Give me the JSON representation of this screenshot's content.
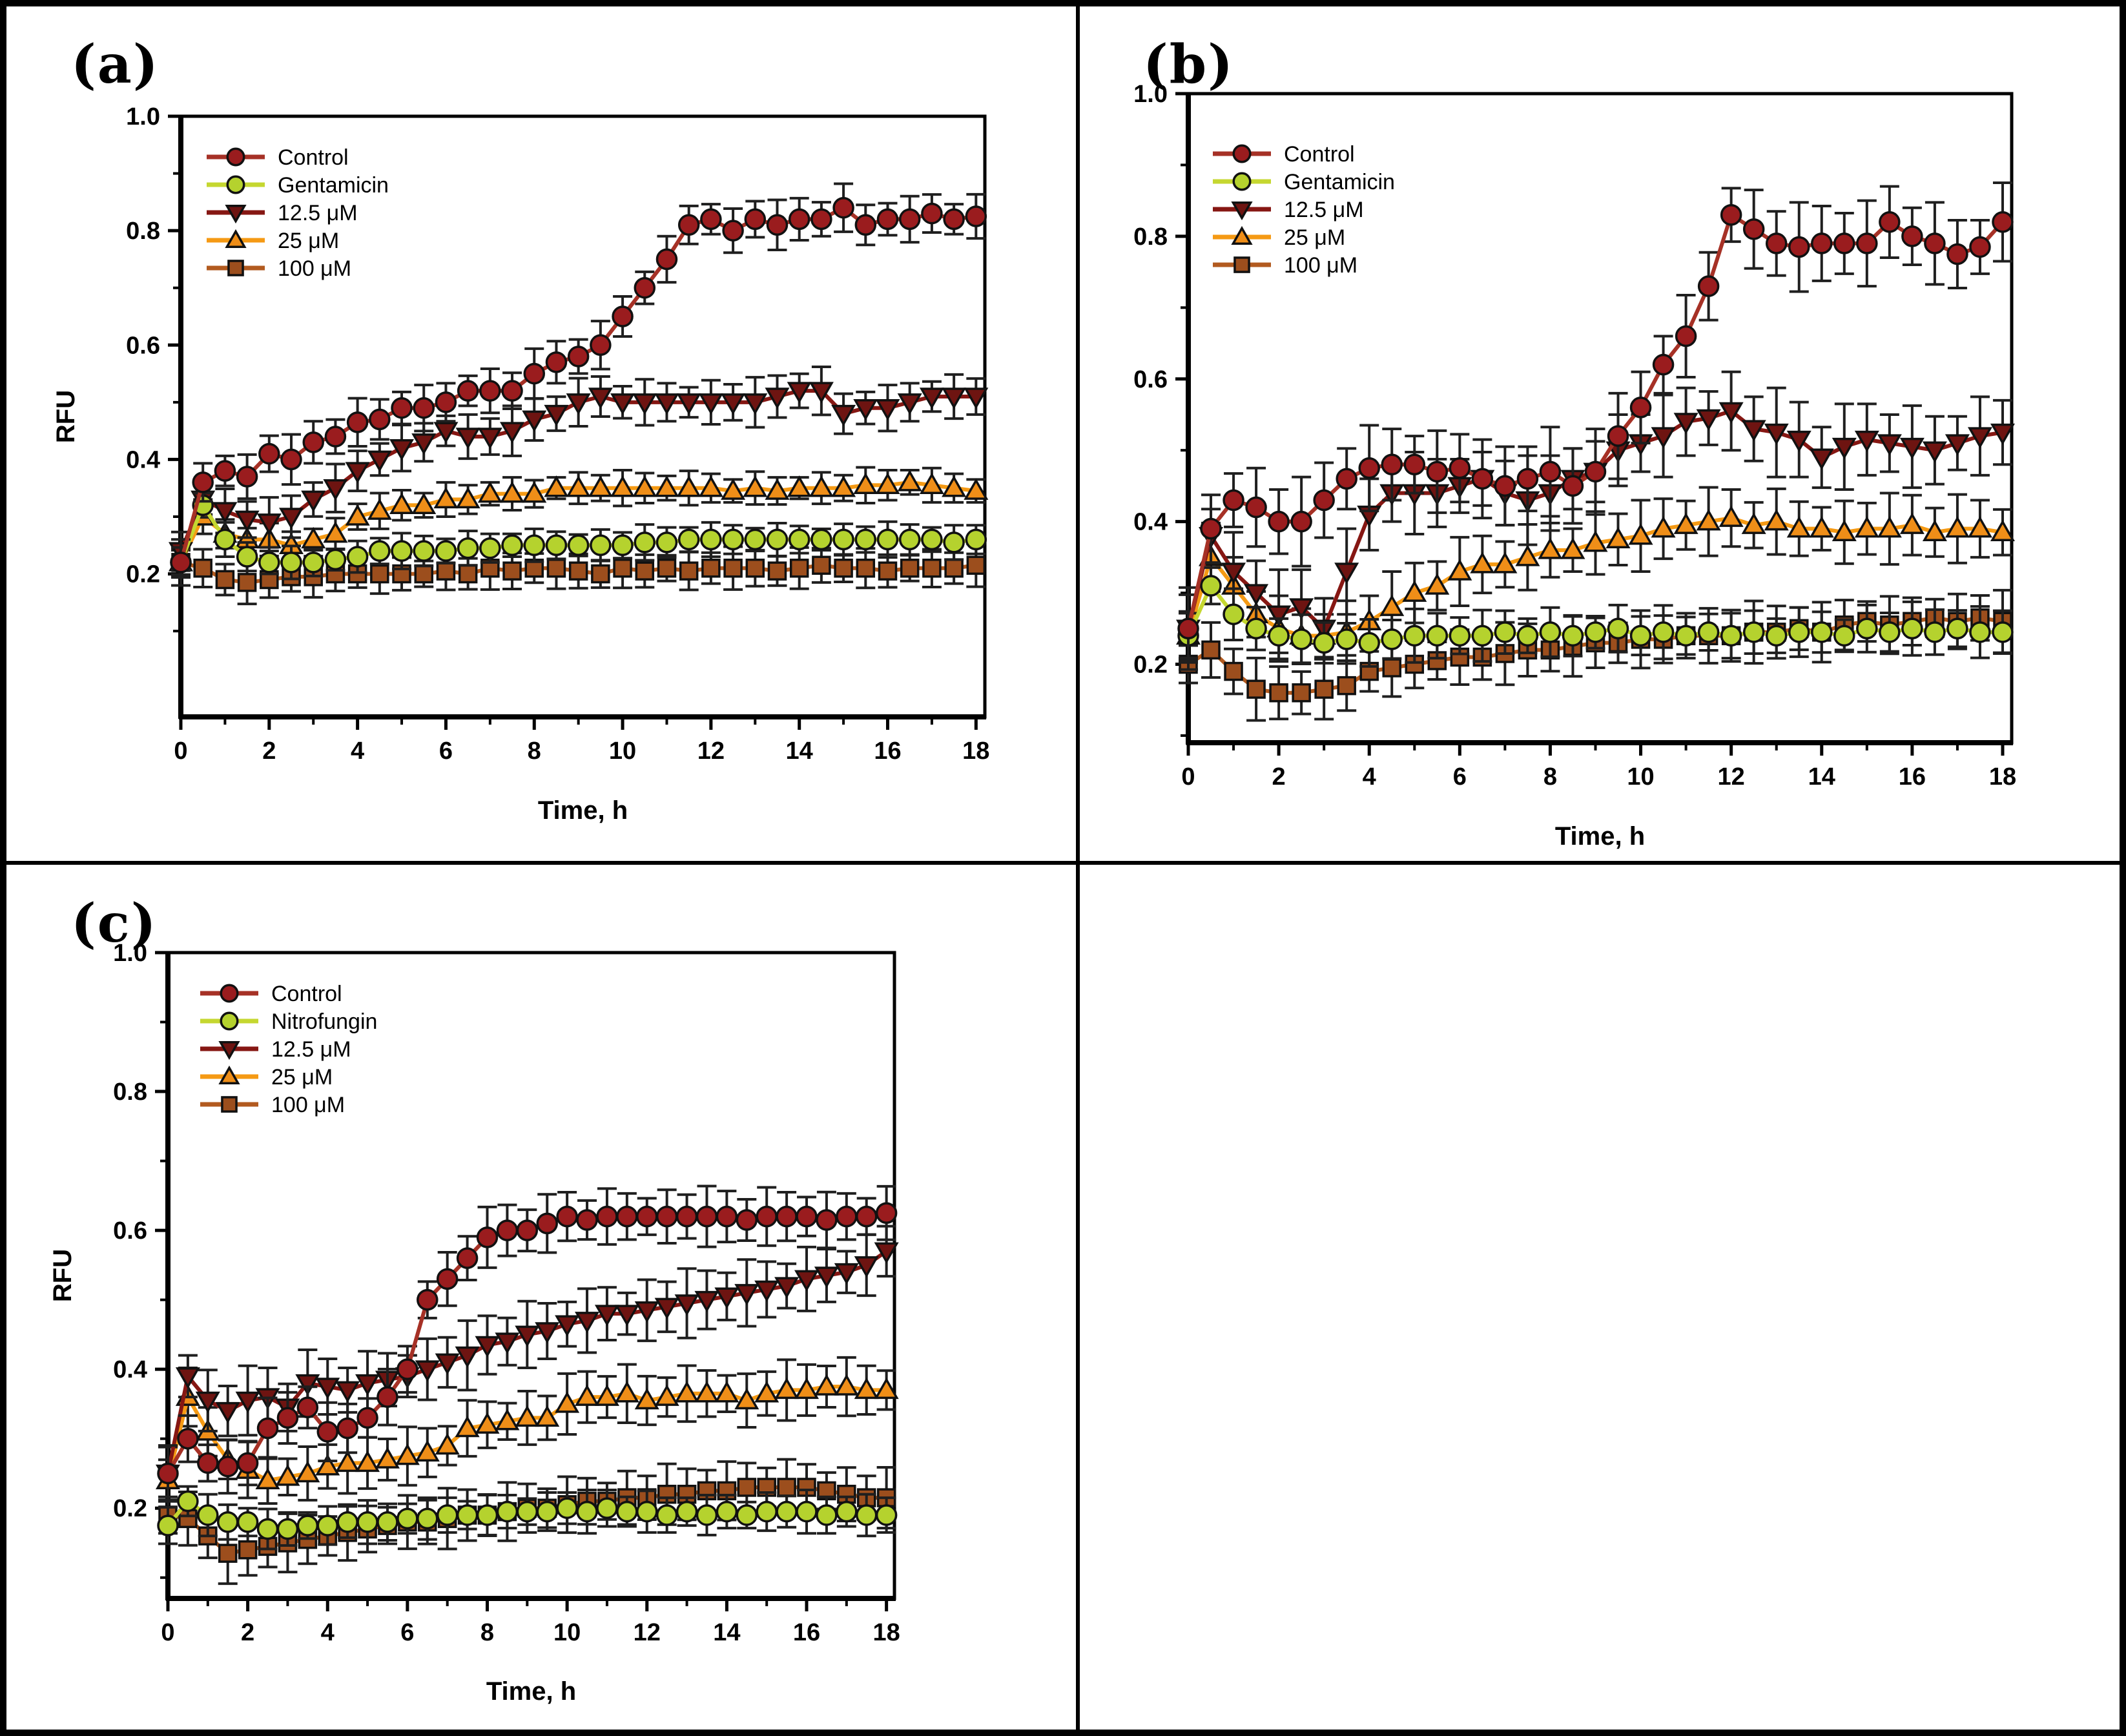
{
  "figure": {
    "background_color": "#ffffff",
    "border_color": "#000000",
    "error_bar_color": "#1f1f1f",
    "empty_cell": "bottom-right"
  },
  "chart_data": [
    {
      "type": "line",
      "id": "a",
      "title": "(a)",
      "xlabel": "Time, h",
      "ylabel": "RFU",
      "x_tick_labels": [
        "0",
        "2",
        "4",
        "6",
        "8",
        "10",
        "12",
        "14",
        "16",
        "18"
      ],
      "y_tick_labels": [
        "0.2",
        "0.4",
        "0.6",
        "0.8",
        "1.0"
      ],
      "xlim": [
        0,
        18.2
      ],
      "ylim": [
        -0.05,
        1.0
      ],
      "grid": false,
      "legend_position": "upper left",
      "x_hours": [
        0,
        0.5,
        1,
        1.5,
        2,
        2.5,
        3,
        3.5,
        4,
        4.5,
        5,
        5.5,
        6,
        6.5,
        7,
        7.5,
        8,
        8.5,
        9,
        9.5,
        10,
        10.5,
        11,
        11.5,
        12,
        12.5,
        13,
        13.5,
        14,
        14.5,
        15,
        15.5,
        16,
        16.5,
        17,
        17.5,
        18
      ],
      "series": [
        {
          "name": "Control",
          "marker": "circle",
          "line_color": "#a63126",
          "marker_color": "#9a1c1e",
          "error_bar": 0.035,
          "values": [
            0.22,
            0.36,
            0.38,
            0.37,
            0.41,
            0.4,
            0.43,
            0.44,
            0.465,
            0.47,
            0.49,
            0.49,
            0.5,
            0.52,
            0.52,
            0.52,
            0.55,
            0.57,
            0.58,
            0.6,
            0.65,
            0.7,
            0.75,
            0.81,
            0.82,
            0.8,
            0.82,
            0.81,
            0.82,
            0.82,
            0.84,
            0.81,
            0.82,
            0.82,
            0.83,
            0.82,
            0.825
          ]
        },
        {
          "name": "Gentamicin",
          "marker": "circle",
          "line_color": "#c5d730",
          "marker_color": "#b5d22e",
          "error_bar": 0.025,
          "values": [
            0.22,
            0.32,
            0.26,
            0.23,
            0.22,
            0.22,
            0.22,
            0.225,
            0.23,
            0.24,
            0.24,
            0.24,
            0.24,
            0.245,
            0.245,
            0.25,
            0.25,
            0.25,
            0.25,
            0.25,
            0.25,
            0.255,
            0.255,
            0.26,
            0.26,
            0.26,
            0.26,
            0.26,
            0.26,
            0.26,
            0.26,
            0.26,
            0.26,
            0.26,
            0.26,
            0.255,
            0.26
          ]
        },
        {
          "name": "12.5 μM",
          "marker": "triangle-down",
          "line_color": "#861713",
          "marker_color": "#6e1411",
          "error_bar": 0.035,
          "values": [
            0.24,
            0.33,
            0.31,
            0.295,
            0.29,
            0.3,
            0.33,
            0.35,
            0.38,
            0.4,
            0.42,
            0.43,
            0.45,
            0.44,
            0.44,
            0.45,
            0.47,
            0.48,
            0.5,
            0.51,
            0.5,
            0.5,
            0.5,
            0.5,
            0.5,
            0.5,
            0.5,
            0.51,
            0.52,
            0.52,
            0.48,
            0.49,
            0.49,
            0.5,
            0.51,
            0.51,
            0.51
          ]
        },
        {
          "name": "25 μM",
          "marker": "triangle-up",
          "line_color": "#f59a14",
          "marker_color": "#ef8e18",
          "error_bar": 0.025,
          "values": [
            0.22,
            0.3,
            0.27,
            0.26,
            0.26,
            0.25,
            0.26,
            0.27,
            0.3,
            0.31,
            0.32,
            0.32,
            0.33,
            0.33,
            0.34,
            0.34,
            0.34,
            0.35,
            0.35,
            0.35,
            0.35,
            0.35,
            0.35,
            0.35,
            0.35,
            0.345,
            0.35,
            0.345,
            0.35,
            0.35,
            0.35,
            0.355,
            0.355,
            0.36,
            0.355,
            0.35,
            0.345
          ]
        },
        {
          "name": "100 μM",
          "marker": "square",
          "line_color": "#b25a1f",
          "marker_color": "#9c4e1d",
          "error_bar": 0.03,
          "values": [
            0.22,
            0.21,
            0.19,
            0.185,
            0.19,
            0.195,
            0.195,
            0.2,
            0.2,
            0.2,
            0.2,
            0.2,
            0.205,
            0.2,
            0.21,
            0.205,
            0.21,
            0.21,
            0.205,
            0.2,
            0.21,
            0.205,
            0.21,
            0.205,
            0.21,
            0.21,
            0.21,
            0.205,
            0.21,
            0.215,
            0.21,
            0.21,
            0.205,
            0.21,
            0.21,
            0.21,
            0.215
          ]
        }
      ]
    },
    {
      "type": "line",
      "id": "b",
      "title": "(b)",
      "xlabel": "Time, h",
      "ylabel": "",
      "x_tick_labels": [
        "0",
        "2",
        "4",
        "6",
        "8",
        "10",
        "12",
        "14",
        "16",
        "18"
      ],
      "y_tick_labels": [
        "0.2",
        "0.4",
        "0.6",
        "0.8",
        "1.0"
      ],
      "xlim": [
        0,
        18.2
      ],
      "ylim": [
        0.09,
        1.0
      ],
      "grid": false,
      "legend_position": "upper left",
      "x_hours": [
        0,
        0.5,
        1,
        1.5,
        2,
        2.5,
        3,
        3.5,
        4,
        4.5,
        5,
        5.5,
        6,
        6.5,
        7,
        7.5,
        8,
        8.5,
        9,
        9.5,
        10,
        10.5,
        11,
        11.5,
        12,
        12.5,
        13,
        13.5,
        14,
        14.5,
        15,
        15.5,
        16,
        16.5,
        17,
        17.5,
        18
      ],
      "series": [
        {
          "name": "Control",
          "marker": "circle",
          "line_color": "#a63126",
          "marker_color": "#9a1c1e",
          "error_bar": 0.05,
          "values": [
            0.25,
            0.39,
            0.43,
            0.42,
            0.4,
            0.4,
            0.43,
            0.46,
            0.475,
            0.48,
            0.48,
            0.47,
            0.475,
            0.46,
            0.45,
            0.46,
            0.47,
            0.45,
            0.47,
            0.52,
            0.56,
            0.62,
            0.66,
            0.73,
            0.83,
            0.81,
            0.79,
            0.785,
            0.79,
            0.79,
            0.79,
            0.82,
            0.8,
            0.79,
            0.775,
            0.785,
            0.82
          ]
        },
        {
          "name": "Gentamicin",
          "marker": "circle",
          "line_color": "#c5d730",
          "marker_color": "#b5d22e",
          "error_bar": 0.03,
          "values": [
            0.24,
            0.31,
            0.27,
            0.25,
            0.24,
            0.235,
            0.23,
            0.235,
            0.23,
            0.235,
            0.24,
            0.24,
            0.24,
            0.24,
            0.245,
            0.24,
            0.245,
            0.24,
            0.245,
            0.25,
            0.24,
            0.245,
            0.24,
            0.245,
            0.24,
            0.245,
            0.24,
            0.245,
            0.245,
            0.24,
            0.25,
            0.245,
            0.25,
            0.245,
            0.25,
            0.245,
            0.245
          ]
        },
        {
          "name": "12.5 μM",
          "marker": "triangle-down",
          "line_color": "#861713",
          "marker_color": "#6e1411",
          "error_bar": 0.05,
          "values": [
            0.25,
            0.38,
            0.33,
            0.3,
            0.27,
            0.28,
            0.25,
            0.33,
            0.41,
            0.44,
            0.44,
            0.44,
            0.45,
            0.46,
            0.44,
            0.43,
            0.44,
            0.46,
            0.47,
            0.5,
            0.51,
            0.52,
            0.54,
            0.545,
            0.555,
            0.53,
            0.525,
            0.515,
            0.49,
            0.505,
            0.515,
            0.51,
            0.505,
            0.5,
            0.51,
            0.52,
            0.525
          ]
        },
        {
          "name": "25 μM",
          "marker": "triangle-up",
          "line_color": "#f59a14",
          "marker_color": "#ef8e18",
          "error_bar": 0.04,
          "values": [
            0.24,
            0.35,
            0.31,
            0.27,
            0.25,
            0.24,
            0.24,
            0.245,
            0.26,
            0.28,
            0.3,
            0.31,
            0.33,
            0.34,
            0.34,
            0.35,
            0.36,
            0.36,
            0.37,
            0.375,
            0.38,
            0.39,
            0.395,
            0.4,
            0.405,
            0.395,
            0.4,
            0.39,
            0.39,
            0.385,
            0.39,
            0.39,
            0.395,
            0.385,
            0.39,
            0.39,
            0.385
          ]
        },
        {
          "name": "100 μM",
          "marker": "square",
          "line_color": "#b25a1f",
          "marker_color": "#9c4e1d",
          "error_bar": 0.035,
          "values": [
            0.2,
            0.22,
            0.19,
            0.165,
            0.16,
            0.16,
            0.165,
            0.17,
            0.19,
            0.195,
            0.2,
            0.205,
            0.21,
            0.21,
            0.215,
            0.22,
            0.22,
            0.225,
            0.23,
            0.23,
            0.235,
            0.235,
            0.24,
            0.24,
            0.24,
            0.245,
            0.245,
            0.25,
            0.245,
            0.255,
            0.26,
            0.255,
            0.26,
            0.265,
            0.26,
            0.265,
            0.26
          ]
        }
      ]
    },
    {
      "type": "line",
      "id": "c",
      "title": "(c)",
      "xlabel": "Time, h",
      "ylabel": "RFU",
      "x_tick_labels": [
        "0",
        "2",
        "4",
        "6",
        "8",
        "10",
        "12",
        "14",
        "16",
        "18"
      ],
      "y_tick_labels": [
        "0.2",
        "0.4",
        "0.6",
        "0.8",
        "1.0"
      ],
      "xlim": [
        0,
        18.2
      ],
      "ylim": [
        0.07,
        1.0
      ],
      "grid": false,
      "legend_position": "upper left",
      "x_hours": [
        0,
        0.5,
        1,
        1.5,
        2,
        2.5,
        3,
        3.5,
        4,
        4.5,
        5,
        5.5,
        6,
        6.5,
        7,
        7.5,
        8,
        8.5,
        9,
        9.5,
        10,
        10.5,
        11,
        11.5,
        12,
        12.5,
        13,
        13.5,
        14,
        14.5,
        15,
        15.5,
        16,
        16.5,
        17,
        17.5,
        18
      ],
      "series": [
        {
          "name": "Control",
          "marker": "circle",
          "line_color": "#a63126",
          "marker_color": "#9a1c1e",
          "error_bar": 0.035,
          "values": [
            0.25,
            0.3,
            0.265,
            0.26,
            0.265,
            0.315,
            0.33,
            0.345,
            0.31,
            0.315,
            0.33,
            0.36,
            0.4,
            0.5,
            0.53,
            0.56,
            0.59,
            0.6,
            0.6,
            0.61,
            0.62,
            0.615,
            0.62,
            0.62,
            0.62,
            0.62,
            0.62,
            0.62,
            0.62,
            0.615,
            0.62,
            0.62,
            0.62,
            0.615,
            0.62,
            0.62,
            0.625
          ]
        },
        {
          "name": "Nitrofungin",
          "marker": "circle",
          "line_color": "#c5d730",
          "marker_color": "#b5d22e",
          "error_bar": 0.025,
          "values": [
            0.175,
            0.21,
            0.19,
            0.18,
            0.18,
            0.17,
            0.17,
            0.175,
            0.175,
            0.18,
            0.18,
            0.18,
            0.185,
            0.185,
            0.19,
            0.19,
            0.19,
            0.195,
            0.195,
            0.195,
            0.2,
            0.195,
            0.2,
            0.195,
            0.195,
            0.19,
            0.195,
            0.19,
            0.195,
            0.19,
            0.195,
            0.195,
            0.195,
            0.19,
            0.195,
            0.19,
            0.19
          ]
        },
        {
          "name": "12.5 μM",
          "marker": "triangle-down",
          "line_color": "#861713",
          "marker_color": "#6e1411",
          "error_bar": 0.04,
          "values": [
            0.25,
            0.39,
            0.355,
            0.34,
            0.355,
            0.36,
            0.345,
            0.38,
            0.375,
            0.37,
            0.38,
            0.385,
            0.39,
            0.4,
            0.41,
            0.42,
            0.435,
            0.44,
            0.45,
            0.455,
            0.465,
            0.47,
            0.48,
            0.48,
            0.485,
            0.49,
            0.495,
            0.5,
            0.505,
            0.51,
            0.515,
            0.52,
            0.53,
            0.535,
            0.54,
            0.55,
            0.57
          ]
        },
        {
          "name": "25 μM",
          "marker": "triangle-up",
          "line_color": "#f59a14",
          "marker_color": "#ef8e18",
          "error_bar": 0.035,
          "values": [
            0.24,
            0.36,
            0.31,
            0.27,
            0.255,
            0.24,
            0.245,
            0.25,
            0.26,
            0.265,
            0.265,
            0.27,
            0.275,
            0.28,
            0.29,
            0.315,
            0.32,
            0.325,
            0.33,
            0.33,
            0.35,
            0.36,
            0.36,
            0.365,
            0.355,
            0.36,
            0.365,
            0.365,
            0.365,
            0.355,
            0.365,
            0.37,
            0.37,
            0.375,
            0.375,
            0.37,
            0.37
          ]
        },
        {
          "name": "100 μM",
          "marker": "square",
          "line_color": "#b25a1f",
          "marker_color": "#9c4e1d",
          "error_bar": 0.035,
          "values": [
            0.19,
            0.185,
            0.16,
            0.135,
            0.14,
            0.145,
            0.15,
            0.155,
            0.16,
            0.165,
            0.17,
            0.175,
            0.18,
            0.18,
            0.185,
            0.19,
            0.19,
            0.195,
            0.2,
            0.2,
            0.205,
            0.21,
            0.21,
            0.215,
            0.215,
            0.22,
            0.22,
            0.225,
            0.225,
            0.23,
            0.23,
            0.23,
            0.23,
            0.225,
            0.22,
            0.215,
            0.215
          ]
        }
      ]
    }
  ]
}
